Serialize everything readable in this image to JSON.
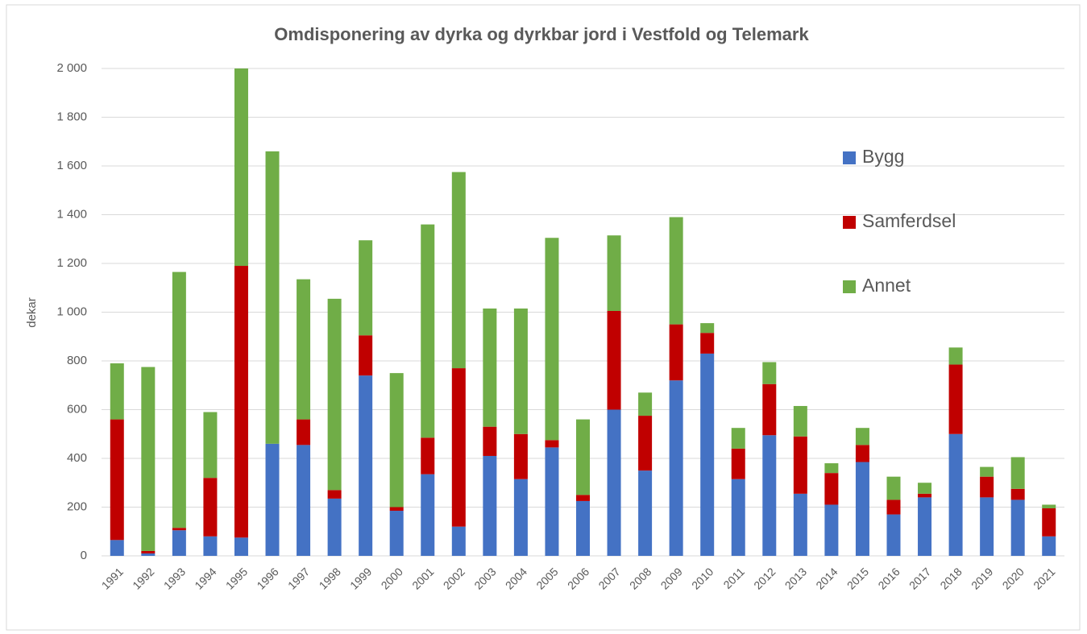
{
  "chart_data": {
    "type": "stacked_bar",
    "title": "Omdisponering av dyrka og dyrkbar jord i Vestfold og Telemark",
    "y_label": "dekar",
    "categories": [
      "1991",
      "1992",
      "1993",
      "1994",
      "1995",
      "1996",
      "1997",
      "1998",
      "1999",
      "2000",
      "2001",
      "2002",
      "2003",
      "2004",
      "2005",
      "2006",
      "2007",
      "2008",
      "2009",
      "2010",
      "2011",
      "2012",
      "2013",
      "2014",
      "2015",
      "2016",
      "2017",
      "2018",
      "2019",
      "2020",
      "2021"
    ],
    "series": [
      {
        "name": "Bygg",
        "color": "#4472c4",
        "values": [
          65,
          10,
          105,
          80,
          75,
          460,
          455,
          235,
          740,
          185,
          335,
          120,
          410,
          315,
          445,
          225,
          600,
          350,
          720,
          830,
          315,
          495,
          255,
          210,
          385,
          170,
          240,
          500,
          240,
          230,
          80
        ]
      },
      {
        "name": "Samferdsel",
        "color": "#c00000",
        "values": [
          495,
          10,
          10,
          240,
          1115,
          0,
          105,
          35,
          165,
          15,
          150,
          650,
          120,
          185,
          30,
          25,
          405,
          225,
          230,
          85,
          125,
          210,
          235,
          130,
          70,
          60,
          15,
          285,
          85,
          45,
          115
        ]
      },
      {
        "name": "Annet",
        "color": "#70ad47",
        "values": [
          230,
          755,
          1050,
          270,
          810,
          1200,
          575,
          785,
          390,
          550,
          875,
          805,
          485,
          515,
          830,
          310,
          310,
          95,
          440,
          40,
          85,
          90,
          125,
          40,
          70,
          95,
          45,
          70,
          40,
          130,
          15
        ]
      }
    ],
    "ylim": [
      0,
      2000
    ],
    "yticks": [
      0,
      200,
      400,
      600,
      800,
      {
        "value": 1000,
        "label": "1 000"
      },
      {
        "value": 1200,
        "label": "1 200"
      },
      {
        "value": 1400,
        "label": "1 400"
      },
      {
        "value": 1600,
        "label": "1 600"
      },
      {
        "value": 1800,
        "label": "1 800"
      },
      {
        "value": 2000,
        "label": "2 000"
      }
    ],
    "grid": true,
    "legend": "right"
  }
}
